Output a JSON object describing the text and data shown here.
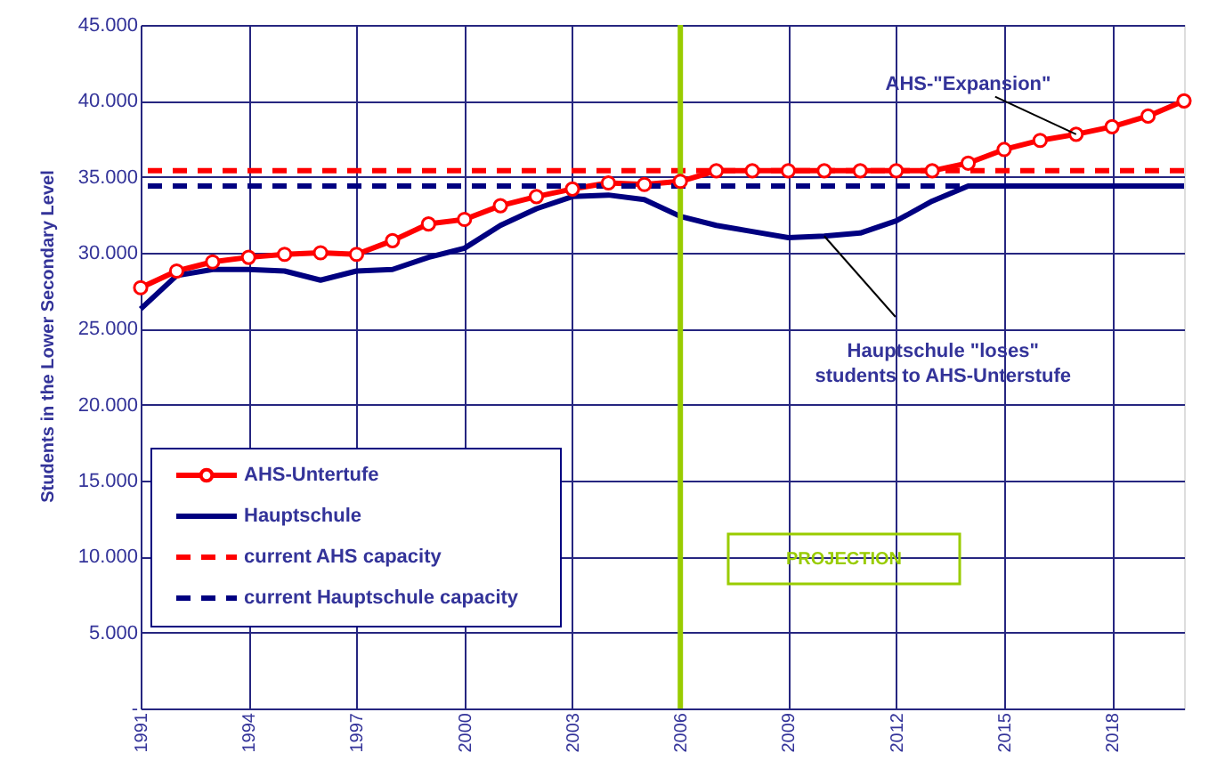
{
  "chart_data": {
    "type": "line",
    "ylabel": "Students in the Lower Secondary Level",
    "x": [
      1991,
      1992,
      1993,
      1994,
      1995,
      1996,
      1997,
      1998,
      1999,
      2000,
      2001,
      2002,
      2003,
      2004,
      2005,
      2006,
      2007,
      2008,
      2009,
      2010,
      2011,
      2012,
      2013,
      2014,
      2015,
      2016,
      2017,
      2018,
      2019,
      2020
    ],
    "series": [
      {
        "name": "AHS-Untertufe",
        "color": "#ff0000",
        "marker": "circle",
        "values": [
          27700,
          28800,
          29400,
          29700,
          29900,
          30000,
          29900,
          30800,
          31900,
          32200,
          33100,
          33700,
          34200,
          34600,
          34500,
          34700,
          35400,
          35400,
          35400,
          35400,
          35400,
          35400,
          35400,
          35900,
          36800,
          37400,
          37800,
          38300,
          39000,
          40000
        ]
      },
      {
        "name": "Hauptschule",
        "color": "#000080",
        "marker": "none",
        "values": [
          26300,
          28500,
          28900,
          28900,
          28800,
          28200,
          28800,
          28900,
          29700,
          30300,
          31800,
          32900,
          33700,
          33800,
          33500,
          32400,
          31800,
          31400,
          31000,
          31100,
          31300,
          32100,
          33400,
          34400,
          34400,
          34400,
          34400,
          34400,
          34400,
          34400
        ]
      }
    ],
    "ref_lines": [
      {
        "axis": "y",
        "value": 35400,
        "label": "current AHS capacity",
        "color": "#ff0000",
        "line_style": "dashed"
      },
      {
        "axis": "y",
        "value": 34400,
        "label": "current Hauptschule capacity",
        "color": "#000080",
        "line_style": "dashed"
      },
      {
        "axis": "x",
        "value": 2006,
        "color": "#99cc00",
        "line_style": "solid"
      }
    ],
    "annotations": [
      {
        "text": "AHS-\"Expansion\"",
        "x": 2017,
        "y": 37800
      },
      {
        "text": "Hauptschule \"loses\"\nstudents to AHS-Unterstufe",
        "x": 2010,
        "y": 31100
      },
      "PROJECTION"
    ],
    "xlim": [
      1991,
      2020
    ],
    "xticks": [
      1991,
      1994,
      1997,
      2000,
      2003,
      2006,
      2009,
      2012,
      2015,
      2018
    ],
    "ylim": [
      0,
      45000
    ],
    "yticks": [
      {
        "value": 0,
        "label": "-"
      },
      {
        "value": 5000,
        "label": "5.000"
      },
      {
        "value": 10000,
        "label": "10.000"
      },
      {
        "value": 15000,
        "label": "15.000"
      },
      {
        "value": 20000,
        "label": "20.000"
      },
      {
        "value": 25000,
        "label": "25.000"
      },
      {
        "value": 30000,
        "label": "30.000"
      },
      {
        "value": 35000,
        "label": "35.000"
      },
      {
        "value": 40000,
        "label": "40.000"
      },
      {
        "value": 45000,
        "label": "45.000"
      }
    ],
    "grid": true,
    "legend": "bottom left",
    "line_style": "solid"
  }
}
